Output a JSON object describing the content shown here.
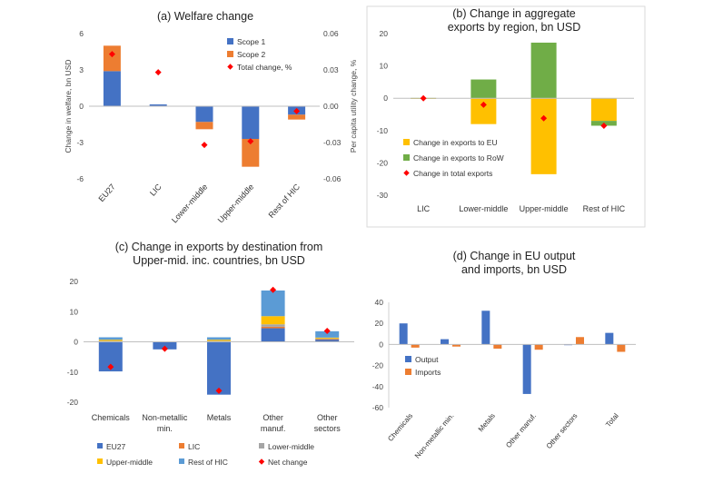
{
  "chart_data": [
    {
      "id": "a",
      "type": "bar",
      "title": "(a) Welfare change",
      "ylabel": "Change in welfare, bn USD",
      "y2label": "Per capita utility change, %",
      "ylim": [
        -6,
        6
      ],
      "yticks": [
        -6,
        -3,
        0,
        3,
        6
      ],
      "y2lim": [
        -0.06,
        0.06
      ],
      "y2ticks": [
        "-0.06",
        "-0.03",
        "0.00",
        "0.03",
        "0.06"
      ],
      "categories": [
        "EU27",
        "LIC",
        "Lower-middle",
        "Upper-middle",
        "Rest of HIC"
      ],
      "stacked": true,
      "series": [
        {
          "name": "Scope 1",
          "color": "#4472c4",
          "values": [
            2.9,
            0.15,
            -1.3,
            -2.7,
            -0.7
          ]
        },
        {
          "name": "Scope 2",
          "color": "#ed7d31",
          "values": [
            2.1,
            0.0,
            -0.6,
            -2.3,
            -0.4
          ]
        }
      ],
      "markers": {
        "name": "Total change, %",
        "color": "#ff0000",
        "axis": "y2",
        "values": [
          0.043,
          0.028,
          -0.032,
          -0.029,
          -0.004
        ]
      },
      "legend": "top-right"
    },
    {
      "id": "b",
      "type": "bar",
      "title": "(b) Change in aggregate exports by region, bn USD",
      "ylim": [
        -30,
        20
      ],
      "yticks": [
        -30,
        -20,
        -10,
        0,
        10,
        20
      ],
      "categories": [
        "LIC",
        "Lower-middle",
        "Upper-middle",
        "Rest of HIC"
      ],
      "stacked": true,
      "series": [
        {
          "name": "Change in exports to EU",
          "color": "#ffc000",
          "values": [
            -0.2,
            -8.0,
            -23.5,
            -7.0
          ]
        },
        {
          "name": "Change in exports to RoW",
          "color": "#70ad47",
          "values": [
            0.1,
            5.8,
            17.2,
            -1.5
          ]
        }
      ],
      "markers": {
        "name": "Change in total exports",
        "color": "#ff0000",
        "values": [
          0.0,
          -2.0,
          -6.2,
          -8.5
        ]
      },
      "legend": "bottom-left"
    },
    {
      "id": "c",
      "type": "bar",
      "title": "(c) Change in exports by destination from Upper-mid. inc. countries, bn USD",
      "ylim": [
        -20,
        20
      ],
      "yticks": [
        -20,
        -10,
        0,
        10,
        20
      ],
      "categories": [
        "Chemicals",
        "Non-metallic min.",
        "Metals",
        "Other manuf.",
        "Other sectors"
      ],
      "stacked": true,
      "series": [
        {
          "name": "EU27",
          "color": "#4472c4",
          "values": [
            -9.8,
            -2.5,
            -17.5,
            4.5,
            0.8
          ]
        },
        {
          "name": "LIC",
          "color": "#ed7d31",
          "values": [
            0.1,
            0.0,
            0.1,
            0.5,
            0.1
          ]
        },
        {
          "name": "Lower-middle",
          "color": "#a5a5a5",
          "values": [
            0.2,
            0.0,
            0.2,
            0.8,
            0.2
          ]
        },
        {
          "name": "Upper-middle",
          "color": "#ffc000",
          "values": [
            0.4,
            0.0,
            0.4,
            2.7,
            0.3
          ]
        },
        {
          "name": "Rest of HIC",
          "color": "#5b9bd5",
          "values": [
            0.8,
            0.1,
            0.8,
            8.5,
            2.1
          ]
        }
      ],
      "markers": {
        "name": "Net change",
        "color": "#ff0000",
        "values": [
          -8.3,
          -2.3,
          -16.2,
          17.2,
          3.6
        ]
      },
      "legend": "bottom"
    },
    {
      "id": "d",
      "type": "bar",
      "title": "(d) Change in EU output and imports, bn USD",
      "ylim": [
        -60,
        40
      ],
      "yticks": [
        -60,
        -40,
        -20,
        0,
        20,
        40
      ],
      "categories": [
        "Chemicals",
        "Non-metallic min.",
        "Metals",
        "Other manuf.",
        "Other sectors",
        "Total"
      ],
      "stacked": false,
      "series": [
        {
          "name": "Output",
          "color": "#4472c4",
          "values": [
            20,
            5,
            32,
            -47,
            0,
            11
          ]
        },
        {
          "name": "Imports",
          "color": "#ed7d31",
          "values": [
            -3,
            -2,
            -4,
            -5,
            7,
            -7
          ]
        }
      ],
      "legend": "left"
    }
  ]
}
